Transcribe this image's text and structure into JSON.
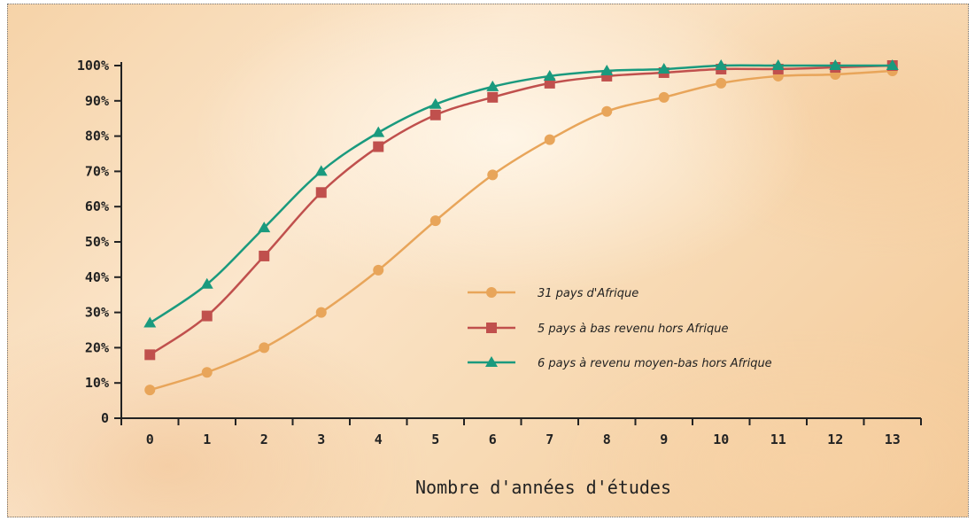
{
  "chart_data": {
    "type": "line",
    "title": "",
    "xlabel": "Nombre d'années d'études",
    "ylabel": "",
    "x": [
      0,
      1,
      2,
      3,
      4,
      5,
      6,
      7,
      8,
      9,
      10,
      11,
      12,
      13
    ],
    "x_tick_labels": [
      "0",
      "1",
      "2",
      "3",
      "4",
      "5",
      "6",
      "7",
      "8",
      "9",
      "10",
      "11",
      "12",
      "13"
    ],
    "y_tick_labels": [
      "0",
      "10%",
      "20%",
      "30%",
      "40%",
      "50%",
      "60%",
      "70%",
      "80%",
      "90%",
      "100%"
    ],
    "ylim": [
      0,
      100
    ],
    "grid": false,
    "legend_position": "center-right",
    "series": [
      {
        "name": "31 pays d'Afrique",
        "color": "#e8a55a",
        "marker": "circle",
        "values": [
          8,
          13,
          20,
          30,
          42,
          56,
          69,
          79,
          87,
          91,
          95,
          97,
          97.5,
          98.5
        ]
      },
      {
        "name": "5 pays à bas revenu hors Afrique",
        "color": "#c0504d",
        "marker": "square",
        "values": [
          18,
          29,
          46,
          64,
          77,
          86,
          91,
          95,
          97,
          98,
          99,
          99,
          99.5,
          100
        ]
      },
      {
        "name": "6 pays à revenu moyen-bas hors Afrique",
        "color": "#1a9a7e",
        "marker": "triangle",
        "values": [
          27,
          38,
          54,
          70,
          81,
          89,
          94,
          97,
          98.5,
          99,
          100,
          100,
          100,
          100
        ]
      }
    ]
  }
}
